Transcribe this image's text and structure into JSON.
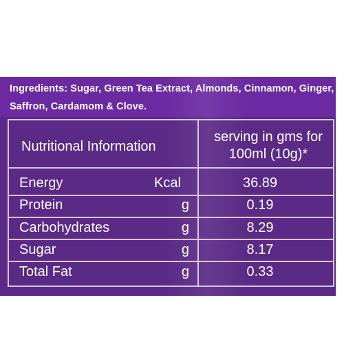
{
  "ingredients": {
    "text": "Ingredients: Sugar, Green Tea Extract, Almonds, Cinnamon, Ginger, Saffron, Cardamom & Clove."
  },
  "table": {
    "headers": {
      "left": "Nutritional Information",
      "right": "serving in gms for 100ml (10g)*"
    },
    "rows": [
      {
        "label": "Energy",
        "unit": "Kcal",
        "value": "36.89"
      },
      {
        "label": "Protein",
        "unit": "g",
        "value": "0.19"
      },
      {
        "label": "Carbohydrates",
        "unit": "g",
        "value": "8.29"
      },
      {
        "label": "Sugar",
        "unit": "g",
        "value": "8.17"
      },
      {
        "label": "Total Fat",
        "unit": "g",
        "value": "0.33"
      }
    ]
  },
  "colors": {
    "background": "#5a2a86",
    "ingredients_band": "#6b2aa2",
    "table_border": "#d7c7e8",
    "text": "#ffffff"
  }
}
